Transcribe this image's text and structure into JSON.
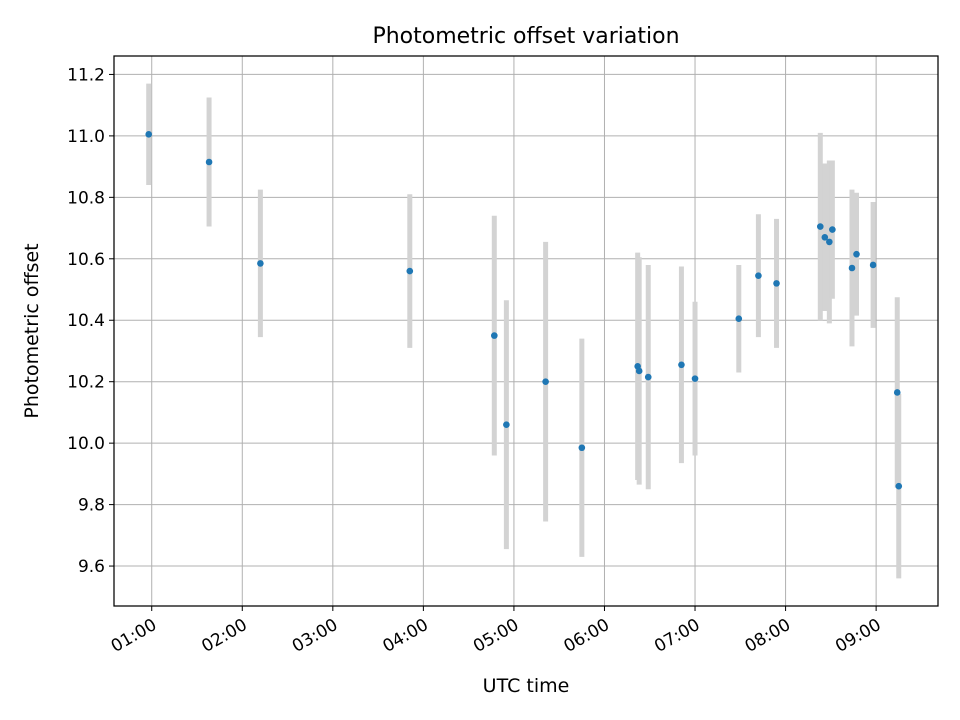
{
  "chart_data": {
    "type": "scatter",
    "title": "Photometric offset variation",
    "xlabel": "UTC time",
    "ylabel": "Photometric offset",
    "x_axis_type": "time",
    "xlim": [
      "00:35",
      "09:41"
    ],
    "ylim": [
      9.47,
      11.26
    ],
    "xticks": [
      "01:00",
      "02:00",
      "03:00",
      "04:00",
      "05:00",
      "06:00",
      "07:00",
      "08:00",
      "09:00"
    ],
    "yticks": [
      9.6,
      9.8,
      10.0,
      10.2,
      10.4,
      10.6,
      10.8,
      11.0,
      11.2
    ],
    "ytick_labels": [
      "9.6",
      "9.8",
      "10.0",
      "10.2",
      "10.4",
      "10.6",
      "10.8",
      "11.0",
      "11.2"
    ],
    "grid": true,
    "legend": "none",
    "marker_color": "#1f77b4",
    "errorbar_color": "#d3d3d3",
    "points": [
      {
        "time": "00:58",
        "y": 11.005,
        "yerr": 0.165
      },
      {
        "time": "01:38",
        "y": 10.915,
        "yerr": 0.21
      },
      {
        "time": "02:12",
        "y": 10.585,
        "yerr": 0.24
      },
      {
        "time": "03:51",
        "y": 10.56,
        "yerr": 0.25
      },
      {
        "time": "04:47",
        "y": 10.35,
        "yerr": 0.39
      },
      {
        "time": "04:55",
        "y": 10.06,
        "yerr": 0.405
      },
      {
        "time": "05:21",
        "y": 10.2,
        "yerr": 0.455
      },
      {
        "time": "05:45",
        "y": 9.985,
        "yerr": 0.355
      },
      {
        "time": "06:22",
        "y": 10.25,
        "yerr": 0.37
      },
      {
        "time": "06:23",
        "y": 10.235,
        "yerr": 0.37
      },
      {
        "time": "06:29",
        "y": 10.215,
        "yerr": 0.365
      },
      {
        "time": "06:51",
        "y": 10.255,
        "yerr": 0.32
      },
      {
        "time": "07:00",
        "y": 10.21,
        "yerr": 0.25
      },
      {
        "time": "07:29",
        "y": 10.405,
        "yerr": 0.175
      },
      {
        "time": "07:42",
        "y": 10.545,
        "yerr": 0.2
      },
      {
        "time": "07:54",
        "y": 10.52,
        "yerr": 0.21
      },
      {
        "time": "08:23",
        "y": 10.705,
        "yerr": 0.305
      },
      {
        "time": "08:26",
        "y": 10.67,
        "yerr": 0.24
      },
      {
        "time": "08:29",
        "y": 10.655,
        "yerr": 0.265
      },
      {
        "time": "08:31",
        "y": 10.695,
        "yerr": 0.225
      },
      {
        "time": "08:44",
        "y": 10.57,
        "yerr": 0.255
      },
      {
        "time": "08:47",
        "y": 10.615,
        "yerr": 0.2
      },
      {
        "time": "08:58",
        "y": 10.58,
        "yerr": 0.205
      },
      {
        "time": "09:14",
        "y": 10.165,
        "yerr": 0.31
      },
      {
        "time": "09:15",
        "y": 9.86,
        "yerr": 0.3
      }
    ]
  }
}
